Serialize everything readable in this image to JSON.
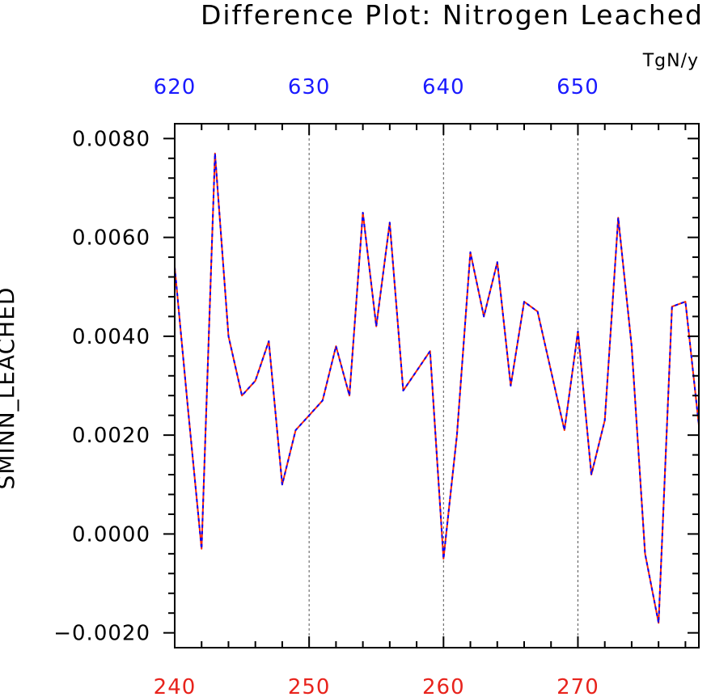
{
  "chart_data": {
    "type": "line",
    "title": "Difference Plot: Nitrogen Leached",
    "units": "TgN/y",
    "ylabel": "SMINN_LEACHED",
    "xlim": [
      240,
      279
    ],
    "ylim": [
      -0.0023,
      0.0083
    ],
    "y_ticks": [
      "0.0080",
      "0.0060",
      "0.0040",
      "0.0020",
      "0.0000",
      "−0.0020"
    ],
    "y_tick_values": [
      0.008,
      0.006,
      0.004,
      0.002,
      0.0,
      -0.002
    ],
    "x_bottom_ticks": [
      "240",
      "250",
      "260",
      "270"
    ],
    "x_bottom_tick_values": [
      240,
      250,
      260,
      270
    ],
    "x_top_ticks": [
      "620",
      "630",
      "640",
      "650"
    ],
    "x_top_tick_values": [
      620,
      630,
      640,
      650
    ],
    "grid": "dashed vertical at labeled x ticks",
    "colors": {
      "bottom_axis_labels": "#e8231c",
      "top_axis_labels": "#1a1aff",
      "series_a": "#ff2a00",
      "series_b": "#0000ff"
    },
    "x": [
      240,
      241,
      242,
      243,
      244,
      245,
      246,
      247,
      248,
      249,
      250,
      251,
      252,
      253,
      254,
      255,
      256,
      257,
      258,
      259,
      260,
      261,
      262,
      263,
      264,
      265,
      266,
      267,
      268,
      269,
      270,
      271,
      272,
      273,
      274,
      275,
      276,
      277,
      278,
      279
    ],
    "series": [
      {
        "values": [
          0.0054,
          0.0025,
          -0.0003,
          0.0077,
          0.004,
          0.0028,
          0.0031,
          0.0039,
          0.001,
          0.0021,
          0.0024,
          0.0027,
          0.0038,
          0.0028,
          0.0065,
          0.0042,
          0.0063,
          0.0029,
          0.0033,
          0.0037,
          -0.0005,
          0.002,
          0.0057,
          0.0044,
          0.0055,
          0.003,
          0.0047,
          0.0045,
          0.0033,
          0.0021,
          0.0041,
          0.0012,
          0.0023,
          0.0064,
          0.0038,
          -0.0004,
          -0.0018,
          0.0046,
          0.0047,
          0.0022
        ]
      },
      {
        "values": [
          0.0054,
          0.0025,
          -0.0003,
          0.0077,
          0.004,
          0.0028,
          0.0031,
          0.0039,
          0.001,
          0.0021,
          0.0024,
          0.0027,
          0.0038,
          0.0028,
          0.0065,
          0.0042,
          0.0063,
          0.0029,
          0.0033,
          0.0037,
          -0.0005,
          0.002,
          0.0057,
          0.0044,
          0.0055,
          0.003,
          0.0047,
          0.0045,
          0.0033,
          0.0021,
          0.0041,
          0.0012,
          0.0023,
          0.0064,
          0.0038,
          -0.0004,
          -0.0018,
          0.0046,
          0.0047,
          0.0022
        ]
      }
    ]
  }
}
